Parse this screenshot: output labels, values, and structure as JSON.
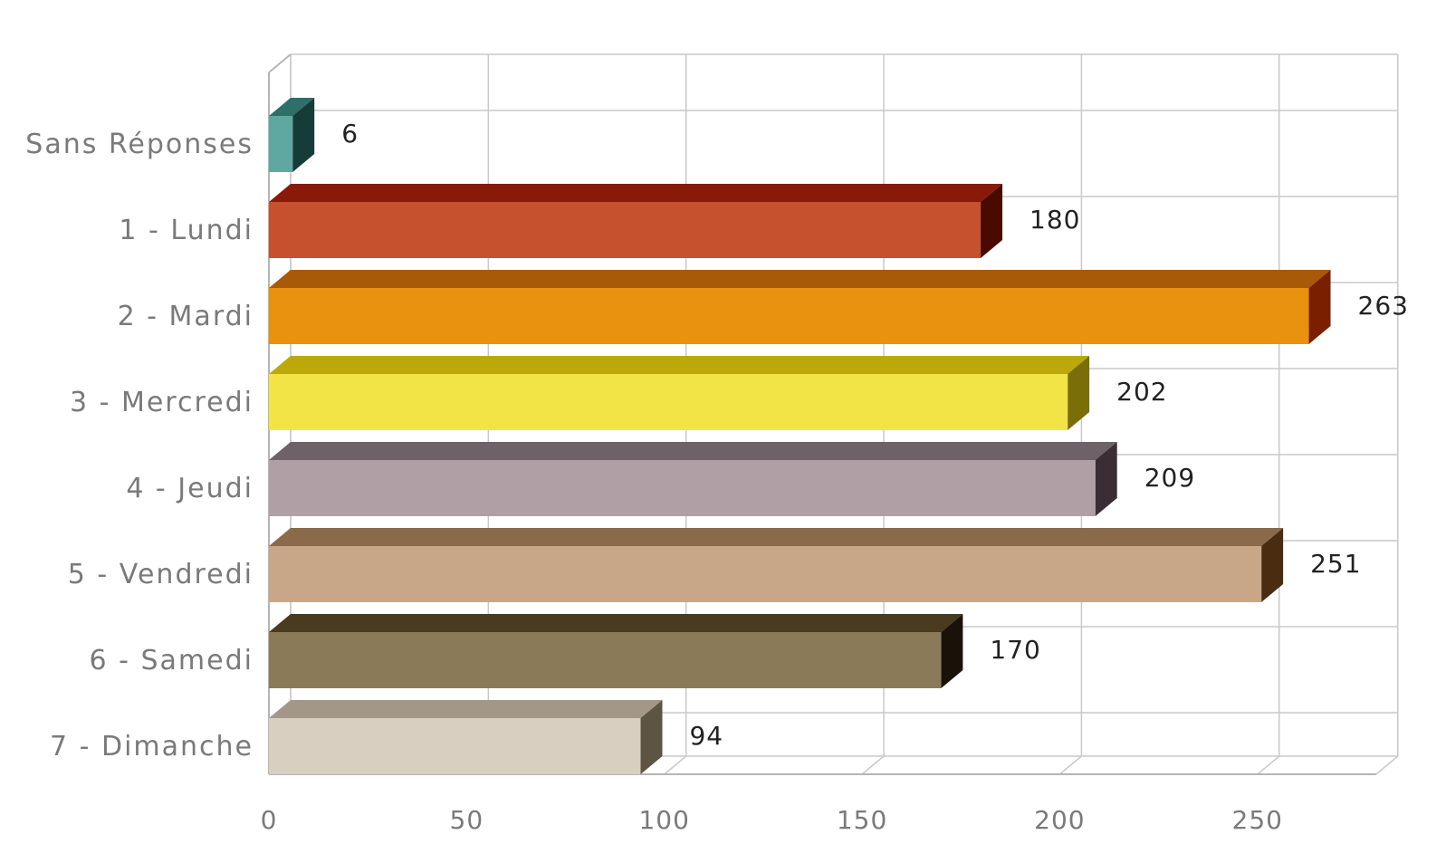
{
  "chart_data": {
    "type": "bar",
    "orientation": "horizontal",
    "style": "3d",
    "title": "",
    "xlabel": "",
    "ylabel": "",
    "xlim": [
      0,
      280
    ],
    "x_ticks": [
      0,
      50,
      100,
      150,
      200,
      250
    ],
    "x_tick_labels": [
      "0",
      "50",
      "100",
      "150",
      "200",
      "250"
    ],
    "grid": true,
    "legend": "none",
    "categories": [
      "Sans Réponses",
      "1 - Lundi",
      "2 - Mardi",
      "3 - Mercredi",
      "4 - Jeudi",
      "5 - Vendredi",
      "6 - Samedi",
      "7 - Dimanche"
    ],
    "values": [
      6,
      180,
      263,
      202,
      209,
      251,
      170,
      94
    ],
    "data_labels": [
      "6",
      "180",
      "263",
      "202",
      "209",
      "251",
      "170",
      "94"
    ],
    "colors": [
      {
        "front": "#5fa8a2",
        "top": "#2e6f6a",
        "side": "#163b38"
      },
      {
        "front": "#c5512f",
        "top": "#8a1a08",
        "side": "#4a0a02"
      },
      {
        "front": "#e8920f",
        "top": "#a85a08",
        "side": "#7a2000"
      },
      {
        "front": "#f2e447",
        "top": "#bca80a",
        "side": "#7a6e08"
      },
      {
        "front": "#b0a0a6",
        "top": "#6e6268",
        "side": "#3a2e34"
      },
      {
        "front": "#c7a787",
        "top": "#8a6a4a",
        "side": "#4a2c10"
      },
      {
        "front": "#8a7a58",
        "top": "#4a3a1e",
        "side": "#1a1208"
      },
      {
        "front": "#d9cfc0",
        "top": "#a39888",
        "side": "#5e5444"
      }
    ]
  }
}
